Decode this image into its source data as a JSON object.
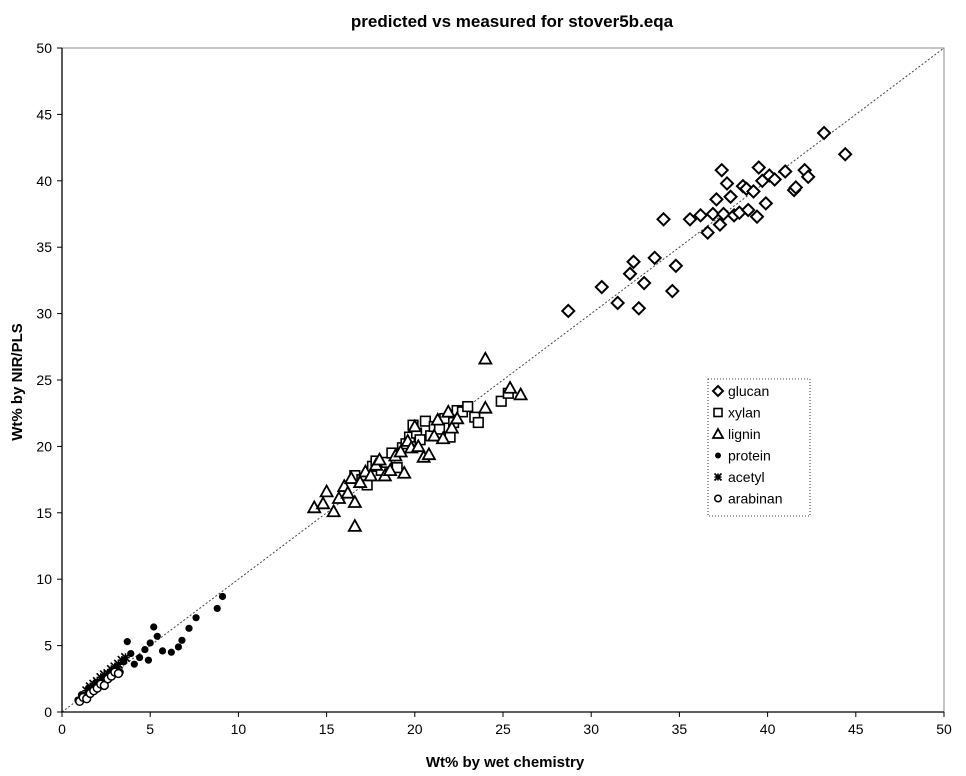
{
  "chart_data": {
    "type": "scatter",
    "title": "predicted vs measured for stover5b.eqa",
    "xlabel": "Wt% by wet chemistry",
    "ylabel": "Wt% by NIR/PLS",
    "xlim": [
      0,
      50
    ],
    "ylim": [
      0,
      50
    ],
    "x_ticks": [
      "0",
      "5",
      "10",
      "15",
      "20",
      "25",
      "30",
      "35",
      "40",
      "45",
      "50"
    ],
    "y_ticks": [
      "0",
      "5",
      "10",
      "15",
      "20",
      "25",
      "30",
      "35",
      "40",
      "45",
      "50"
    ],
    "grid": false,
    "legend_position": "right-middle",
    "reference_line": {
      "style": "dotted",
      "from": [
        0,
        0
      ],
      "to": [
        50,
        50
      ]
    },
    "series": [
      {
        "name": "glucan",
        "marker": "diamond",
        "points": [
          [
            28.7,
            30.2
          ],
          [
            30.6,
            32.0
          ],
          [
            31.5,
            30.8
          ],
          [
            32.2,
            33.0
          ],
          [
            32.4,
            33.9
          ],
          [
            32.7,
            30.4
          ],
          [
            33.0,
            32.3
          ],
          [
            33.6,
            34.2
          ],
          [
            34.1,
            37.1
          ],
          [
            34.6,
            31.7
          ],
          [
            34.8,
            33.6
          ],
          [
            35.6,
            37.1
          ],
          [
            36.2,
            37.4
          ],
          [
            36.6,
            36.1
          ],
          [
            36.9,
            37.5
          ],
          [
            37.1,
            38.6
          ],
          [
            37.3,
            36.7
          ],
          [
            37.4,
            40.8
          ],
          [
            37.5,
            37.5
          ],
          [
            37.7,
            39.8
          ],
          [
            37.9,
            38.8
          ],
          [
            38.1,
            37.4
          ],
          [
            38.4,
            37.6
          ],
          [
            38.6,
            39.6
          ],
          [
            38.8,
            39.4
          ],
          [
            38.9,
            37.8
          ],
          [
            39.2,
            39.2
          ],
          [
            39.4,
            37.3
          ],
          [
            39.5,
            41.0
          ],
          [
            39.7,
            40.0
          ],
          [
            39.9,
            38.3
          ],
          [
            40.1,
            40.4
          ],
          [
            40.4,
            40.1
          ],
          [
            41.0,
            40.7
          ],
          [
            41.5,
            39.3
          ],
          [
            41.6,
            39.5
          ],
          [
            42.1,
            40.8
          ],
          [
            42.3,
            40.3
          ],
          [
            43.2,
            43.6
          ],
          [
            44.4,
            42.0
          ]
        ]
      },
      {
        "name": "xylan",
        "marker": "square",
        "points": [
          [
            16.6,
            17.8
          ],
          [
            17.0,
            17.5
          ],
          [
            17.3,
            17.1
          ],
          [
            17.6,
            18.5
          ],
          [
            17.8,
            18.9
          ],
          [
            18.1,
            18.2
          ],
          [
            18.4,
            18.8
          ],
          [
            18.7,
            19.5
          ],
          [
            19.0,
            18.4
          ],
          [
            19.3,
            19.9
          ],
          [
            19.5,
            20.2
          ],
          [
            19.7,
            20.7
          ],
          [
            19.9,
            21.6
          ],
          [
            20.1,
            21.0
          ],
          [
            20.3,
            20.5
          ],
          [
            20.6,
            21.9
          ],
          [
            20.9,
            20.8
          ],
          [
            21.1,
            21.5
          ],
          [
            21.4,
            21.3
          ],
          [
            21.7,
            22.1
          ],
          [
            22.0,
            20.7
          ],
          [
            22.2,
            21.8
          ],
          [
            22.4,
            22.7
          ],
          [
            22.7,
            22.6
          ],
          [
            23.0,
            23.0
          ],
          [
            23.4,
            22.2
          ],
          [
            23.6,
            21.8
          ],
          [
            24.9,
            23.4
          ],
          [
            25.3,
            24.0
          ]
        ]
      },
      {
        "name": "lignin",
        "marker": "triangle",
        "points": [
          [
            14.3,
            15.4
          ],
          [
            14.8,
            15.7
          ],
          [
            15.0,
            16.6
          ],
          [
            15.4,
            15.1
          ],
          [
            15.7,
            16.1
          ],
          [
            16.0,
            17.0
          ],
          [
            16.2,
            16.5
          ],
          [
            16.4,
            17.6
          ],
          [
            16.6,
            15.8
          ],
          [
            16.6,
            14.0
          ],
          [
            16.9,
            17.3
          ],
          [
            17.2,
            18.1
          ],
          [
            17.5,
            17.8
          ],
          [
            17.8,
            18.6
          ],
          [
            18.0,
            19.0
          ],
          [
            18.3,
            17.8
          ],
          [
            18.6,
            18.2
          ],
          [
            18.9,
            19.3
          ],
          [
            19.2,
            19.6
          ],
          [
            19.4,
            18.0
          ],
          [
            19.6,
            20.4
          ],
          [
            19.8,
            19.9
          ],
          [
            20.0,
            21.5
          ],
          [
            20.2,
            20.0
          ],
          [
            20.5,
            19.2
          ],
          [
            20.8,
            19.4
          ],
          [
            21.1,
            20.8
          ],
          [
            21.3,
            22.0
          ],
          [
            21.6,
            20.6
          ],
          [
            21.9,
            22.6
          ],
          [
            22.1,
            21.4
          ],
          [
            22.4,
            22.1
          ],
          [
            24.0,
            26.6
          ],
          [
            24.0,
            22.9
          ],
          [
            25.4,
            24.4
          ],
          [
            26.0,
            23.9
          ]
        ]
      },
      {
        "name": "protein",
        "marker": "filled-circle",
        "points": [
          [
            0.9,
            0.9
          ],
          [
            1.1,
            1.3
          ],
          [
            1.3,
            1.1
          ],
          [
            1.5,
            1.8
          ],
          [
            1.7,
            1.5
          ],
          [
            1.9,
            2.2
          ],
          [
            2.1,
            1.9
          ],
          [
            2.3,
            2.6
          ],
          [
            2.5,
            2.4
          ],
          [
            2.7,
            3.0
          ],
          [
            2.9,
            2.8
          ],
          [
            3.1,
            3.4
          ],
          [
            3.3,
            3.0
          ],
          [
            3.5,
            3.8
          ],
          [
            3.7,
            5.3
          ],
          [
            3.9,
            4.4
          ],
          [
            4.1,
            3.6
          ],
          [
            4.4,
            4.1
          ],
          [
            4.7,
            4.7
          ],
          [
            4.9,
            3.9
          ],
          [
            5.0,
            5.2
          ],
          [
            5.2,
            6.4
          ],
          [
            5.4,
            5.7
          ],
          [
            5.7,
            4.6
          ],
          [
            6.2,
            4.5
          ],
          [
            6.6,
            4.9
          ],
          [
            6.8,
            5.4
          ],
          [
            7.2,
            6.3
          ],
          [
            7.6,
            7.1
          ],
          [
            8.8,
            7.8
          ],
          [
            9.1,
            8.7
          ]
        ]
      },
      {
        "name": "acetyl",
        "marker": "asterisk",
        "points": [
          [
            1.4,
            1.6
          ],
          [
            1.6,
            1.9
          ],
          [
            1.8,
            2.1
          ],
          [
            2.0,
            2.3
          ],
          [
            2.2,
            2.6
          ],
          [
            2.4,
            2.8
          ],
          [
            2.6,
            2.9
          ],
          [
            2.8,
            3.2
          ],
          [
            3.0,
            3.4
          ],
          [
            3.2,
            3.6
          ],
          [
            3.4,
            3.9
          ],
          [
            3.6,
            4.1
          ]
        ]
      },
      {
        "name": "arabinan",
        "marker": "circle",
        "points": [
          [
            1.0,
            0.8
          ],
          [
            1.2,
            1.1
          ],
          [
            1.4,
            1.0
          ],
          [
            1.6,
            1.4
          ],
          [
            1.8,
            1.6
          ],
          [
            2.0,
            1.8
          ],
          [
            2.2,
            2.1
          ],
          [
            2.4,
            2.0
          ],
          [
            2.6,
            2.5
          ],
          [
            2.8,
            2.7
          ],
          [
            3.0,
            3.0
          ],
          [
            3.2,
            2.9
          ]
        ]
      }
    ]
  }
}
